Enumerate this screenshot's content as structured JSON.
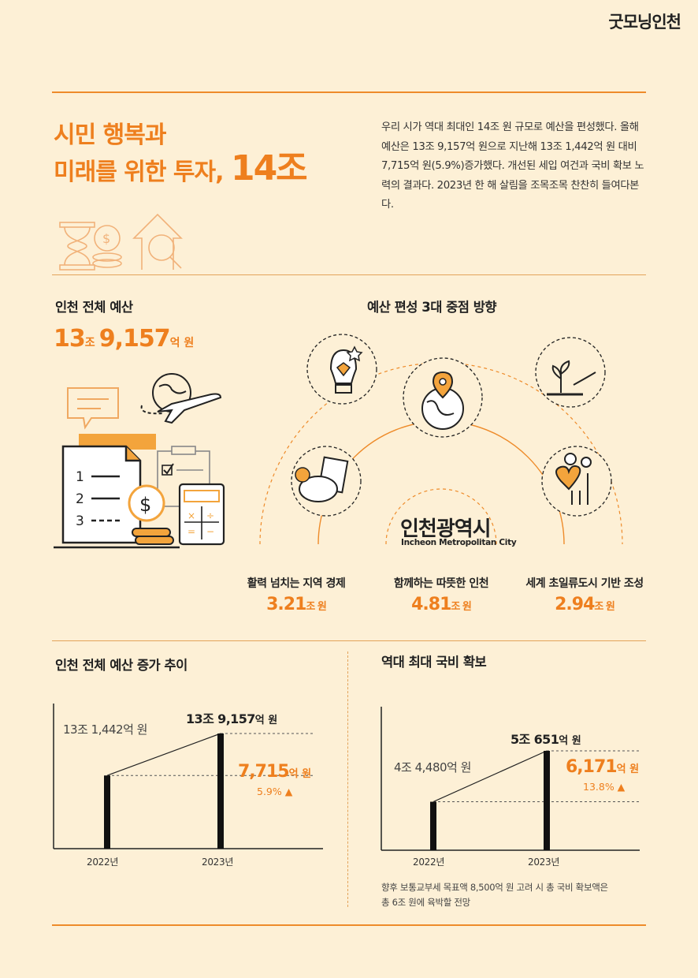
{
  "brand": "굿모닝인천",
  "header": {
    "title_line1": "시민 행복과",
    "title_line2": "미래를 위한 투자,",
    "title_amount": "14조",
    "intro": "우리 시가 역대 최대인 14조 원 규모로 예산을 편성했다. 올해 예산은 13조 9,157억 원으로 지난해 13조 1,442억 원 대비 7,715억 원(5.9%)증가했다. 개선된 세입 여건과 국비 확보 노력의 결과다. 2023년 한 해 살림을 조목조목 찬찬히 들여다본다."
  },
  "total_budget": {
    "heading": "인천 전체 예산",
    "num1": "13",
    "unit1": "조",
    "num2": "9,157",
    "unit2": "억 원",
    "list_numbers": [
      "1",
      "2",
      "3"
    ],
    "icons": [
      "hourglass-coin-icon",
      "growth-magnifier-icon",
      "speech-bubble-icon",
      "globe-airplane-icon",
      "document-list-icon",
      "checklist-icon",
      "dollar-coin-icon",
      "calculator-icon"
    ]
  },
  "directions": {
    "heading": "예산 편성 3대 중점 방향",
    "logo_ko": "인천광역시",
    "logo_en": "Incheon Metropolitan City",
    "items": [
      {
        "caption": "활력 넘치는 지역 경제",
        "value": "3.21",
        "unit": "조 원"
      },
      {
        "caption": "함께하는 따뜻한 인천",
        "value": "4.81",
        "unit": "조 원"
      },
      {
        "caption": "세계 초일류도시 기반 조성",
        "value": "2.94",
        "unit": "조 원"
      }
    ],
    "icons": [
      "lightbulb-icon",
      "globe-pin-icon",
      "plant-hand-icon",
      "piggy-bank-icon",
      "heart-people-icon"
    ]
  },
  "trend_chart": {
    "heading": "인천 전체 예산 증가 추이",
    "label_2022": "13조 1,442억 원",
    "label_2023_num": "13조 9,157",
    "label_2023_unit": "억 원",
    "increase_num": "7,715",
    "increase_unit": "억 원",
    "increase_pct": "5.9% ▲",
    "x_2022": "2022년",
    "x_2023": "2023년"
  },
  "national_chart": {
    "heading": "역대 최대 국비 확보",
    "label_2022": "4조 4,480억 원",
    "label_2023_num": "5조 651",
    "label_2023_unit": "억 원",
    "increase_num": "6,171",
    "increase_unit": "억 원",
    "increase_pct": "13.8% ▲",
    "x_2022": "2022년",
    "x_2023": "2023년",
    "note_line1": "향후 보통교부세 목표액 8,500억 원 고려 시 총 국비 확보액은",
    "note_line2": "총 6조 원에 육박할 전망"
  },
  "chart_data": [
    {
      "type": "bar",
      "title": "인천 전체 예산 증가 추이",
      "categories": [
        "2022년",
        "2023년"
      ],
      "values": [
        131442,
        139157
      ],
      "unit": "억 원",
      "increase": 7715,
      "increase_pct": 5.9
    },
    {
      "type": "bar",
      "title": "역대 최대 국비 확보",
      "categories": [
        "2022년",
        "2023년"
      ],
      "values": [
        44480,
        50651
      ],
      "unit": "억 원",
      "increase": 6171,
      "increase_pct": 13.8
    }
  ],
  "colors": {
    "accent": "#EE7F1E",
    "background": "#FDF0D6",
    "dark": "#222222"
  }
}
